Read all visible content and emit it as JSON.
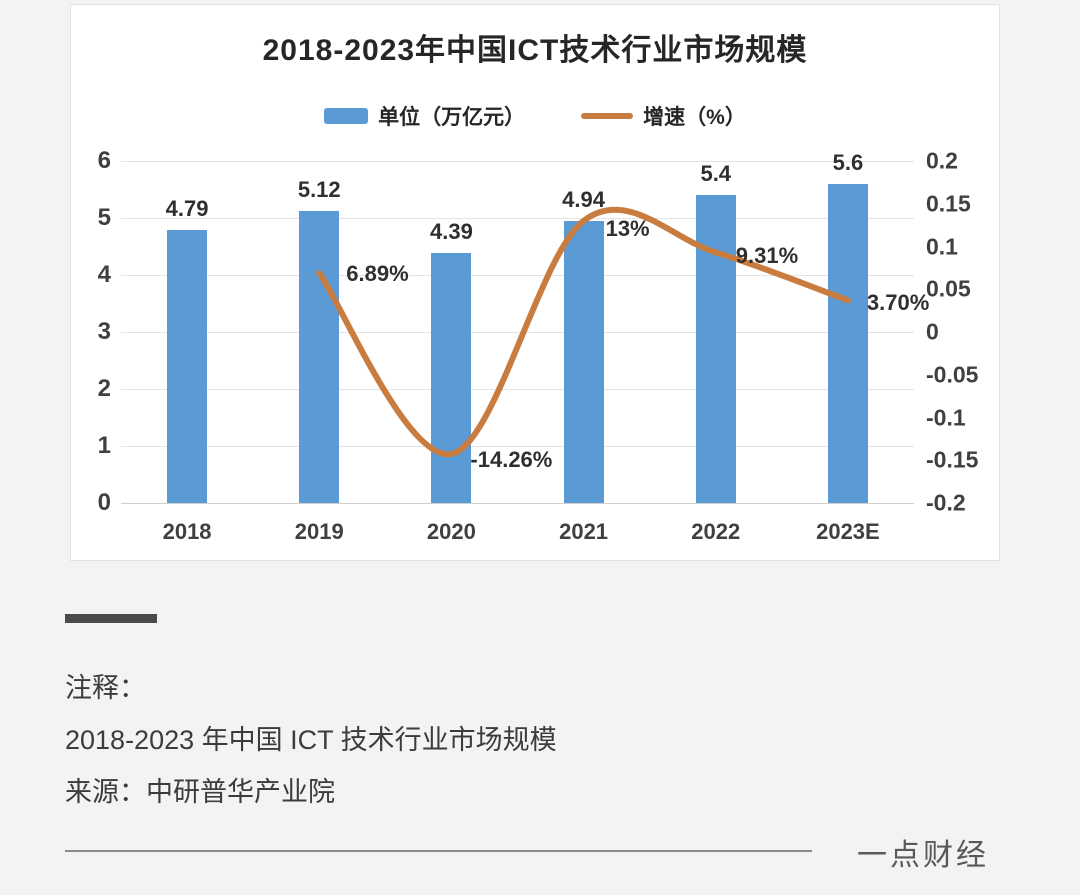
{
  "page": {
    "watermark": "一点财经",
    "notes": {
      "label": "注释：",
      "line1": "2018-2023 年中国 ICT 技术行业市场规模",
      "line2": "来源：中研普华产业院"
    }
  },
  "chart_data": {
    "type": "bar",
    "subtype": "bar+line combo",
    "title": "2018-2023年中国ICT技术行业市场规模",
    "categories": [
      "2018",
      "2019",
      "2020",
      "2021",
      "2022",
      "2023E"
    ],
    "series": [
      {
        "name": "单位（万亿元）",
        "type": "bar",
        "axis": "left",
        "color": "#5b9bd5",
        "values": [
          4.79,
          5.12,
          4.39,
          4.94,
          5.4,
          5.6
        ],
        "labels": [
          "4.79",
          "5.12",
          "4.39",
          "4.94",
          "5.4",
          "5.6"
        ]
      },
      {
        "name": "增速（%）",
        "type": "line",
        "axis": "right",
        "color": "#c97c3f",
        "values": [
          null,
          0.0689,
          -0.1426,
          0.13,
          0.0931,
          0.037
        ],
        "labels": [
          null,
          "6.89%",
          "-14.26%",
          "13%",
          "9.31%",
          "3.70%"
        ],
        "label_offsets": [
          null,
          [
            27,
            1
          ],
          [
            19,
            6
          ],
          [
            22,
            8
          ],
          [
            20,
            4
          ],
          [
            19,
            3
          ]
        ]
      }
    ],
    "left_axis": {
      "min": 0,
      "max": 6,
      "step": 1,
      "ticks": [
        "0",
        "1",
        "2",
        "3",
        "4",
        "5",
        "6"
      ]
    },
    "right_axis": {
      "min": -0.2,
      "max": 0.2,
      "step": 0.05,
      "ticks": [
        "0.2",
        "0.15",
        "0.1",
        "0.05",
        "0",
        "-0.05",
        "-0.1",
        "-0.15",
        "-0.2"
      ]
    },
    "grid": true,
    "legend_position": "top",
    "line_smooth": true
  }
}
